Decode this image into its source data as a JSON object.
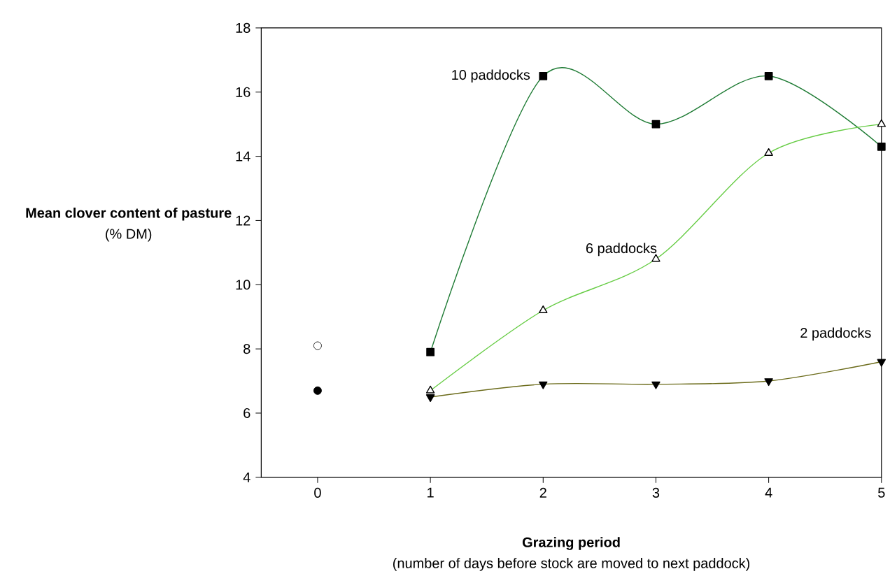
{
  "chart_data": {
    "type": "line",
    "xlabel": "Grazing period",
    "ylabel": "Mean clover content of pasture",
    "annotations": [
      "(% DM)",
      "(number of days before stock are moved to next paddock)"
    ],
    "xlim": [
      -0.5,
      5
    ],
    "ylim": [
      4,
      18
    ],
    "xticks": [
      0,
      1,
      2,
      3,
      4,
      5
    ],
    "yticks": [
      4,
      6,
      8,
      10,
      12,
      14,
      16,
      18
    ],
    "grid": false,
    "series": [
      {
        "name": "10 paddocks",
        "color": "#1e7b34",
        "marker": "square",
        "x": [
          1,
          2,
          3,
          4,
          5
        ],
        "values": [
          7.9,
          16.5,
          15.0,
          16.5,
          14.3
        ]
      },
      {
        "name": "6 paddocks",
        "color": "#66cc44",
        "marker": "triangle",
        "x": [
          1,
          2,
          3,
          4,
          5
        ],
        "values": [
          6.7,
          9.2,
          10.8,
          14.1,
          15.0
        ]
      },
      {
        "name": "2 paddocks",
        "color": "#6b6b1a",
        "marker": "triangle-down",
        "x": [
          1,
          2,
          3,
          4,
          5
        ],
        "values": [
          6.5,
          6.9,
          6.9,
          7.0,
          7.6
        ]
      },
      {
        "type": "scatter",
        "marker": "circle",
        "color": "#ffffff",
        "x": [
          0
        ],
        "values": [
          8.1
        ]
      },
      {
        "type": "scatter",
        "marker": "circle",
        "color": "#000000",
        "x": [
          0
        ],
        "values": [
          6.7
        ]
      }
    ]
  }
}
